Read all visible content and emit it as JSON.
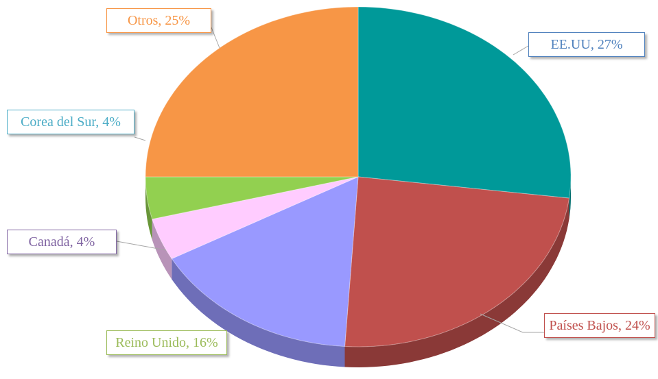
{
  "chart_data": {
    "type": "pie",
    "pie_3d": true,
    "categories": [
      "EE.UU",
      "Países Bajos",
      "Reino Unido",
      "Canadá",
      "Corea del Sur",
      "Otros"
    ],
    "values": [
      27,
      24,
      16,
      4,
      4,
      25
    ],
    "value_labels": [
      "EE.UU, 27%",
      "Países Bajos, 24%",
      "Reino Unido, 16%",
      "Canadá, 4%",
      "Corea del Sur, 4%",
      "Otros, 25%"
    ],
    "colors": [
      "#009999",
      "#c0504d",
      "#9999ff",
      "#ffccff",
      "#92d050",
      "#f79646"
    ],
    "label_colors": [
      "#4f81bd",
      "#c0504d",
      "#9bbb59",
      "#8064a2",
      "#4bacc6",
      "#f79646"
    ]
  }
}
